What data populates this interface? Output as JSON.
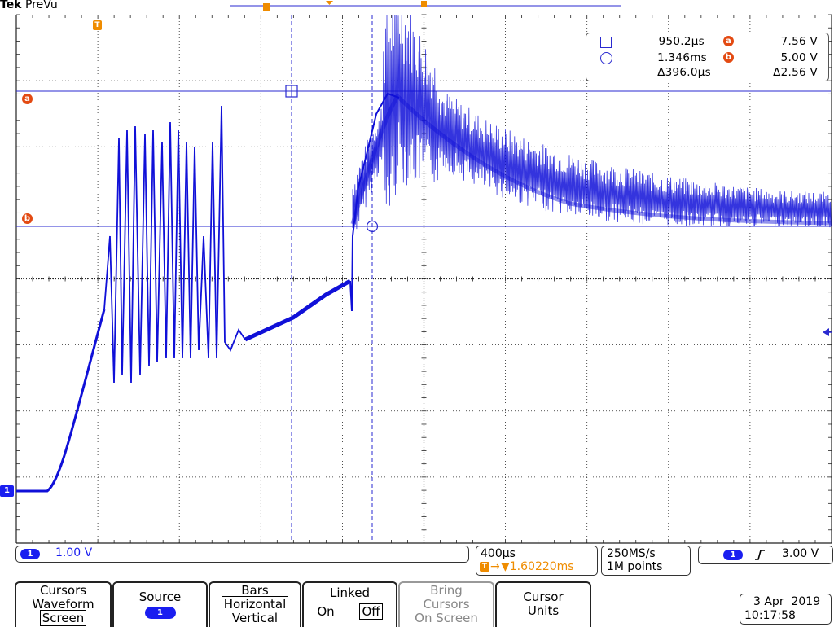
{
  "header": {
    "brand": "Tek",
    "mode": "PreVu"
  },
  "cursor_markers": {
    "a_label": "a",
    "b_label": "b",
    "trigger_label": "T",
    "channel_label": "1"
  },
  "cursor_readout": {
    "square_time": "950.2µs",
    "circle_time": "1.346ms",
    "delta_time": "Δ396.0µs",
    "a_value": "7.56 V",
    "b_value": "5.00 V",
    "delta_value": "Δ2.56 V"
  },
  "status": {
    "channel_scale": "1.00 V",
    "timebase": "400µs",
    "trigger_position": "▼1.60220ms",
    "sample_rate": "250MS/s",
    "record_length": "1M points",
    "trigger_slope_icon": "rising-edge-icon",
    "trigger_level": "3.00 V"
  },
  "menu": {
    "cursors": {
      "line1": "Cursors",
      "line2": "Waveform",
      "line3": "Screen"
    },
    "source": {
      "label": "Source",
      "value": "1"
    },
    "bars": {
      "label": "Bars",
      "opt1": "Horizontal",
      "opt2": "Vertical"
    },
    "linked": {
      "label": "Linked",
      "on": "On",
      "off": "Off"
    },
    "bring": {
      "line1": "Bring",
      "line2": "Cursors",
      "line3": "On Screen"
    },
    "units": {
      "line1": "Cursor",
      "line2": "Units"
    }
  },
  "datetime": {
    "date": "3 Apr  2019",
    "time": "10:17:58"
  },
  "colors": {
    "trace": "#1010d8",
    "cursor": "#2a2ad0",
    "accent": "#e34a12",
    "trigger": "#ef8c00"
  }
}
